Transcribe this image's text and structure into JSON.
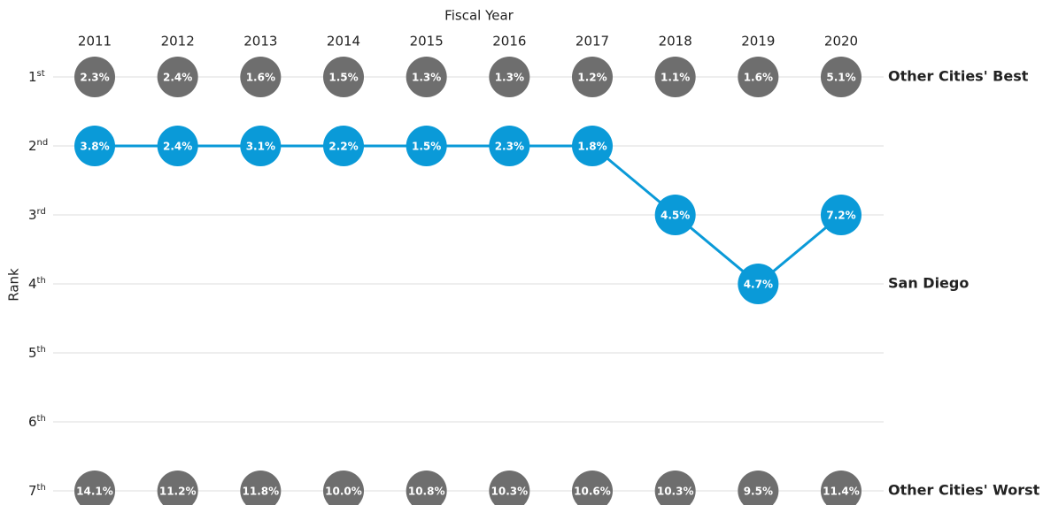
{
  "chart_data": {
    "type": "line",
    "title": "Fiscal Year",
    "y_label": "Rank",
    "categories": [
      "2011",
      "2012",
      "2013",
      "2014",
      "2015",
      "2016",
      "2017",
      "2018",
      "2019",
      "2020"
    ],
    "ylim": [
      1,
      7
    ],
    "yticks": [
      {
        "value": 1,
        "label": "1st"
      },
      {
        "value": 2,
        "label": "2nd"
      },
      {
        "value": 3,
        "label": "3rd"
      },
      {
        "value": 4,
        "label": "4th"
      },
      {
        "value": 5,
        "label": "5th"
      },
      {
        "value": 6,
        "label": "6th"
      },
      {
        "value": 7,
        "label": "7th"
      }
    ],
    "grid": true,
    "series": [
      {
        "name": "Other Cities' Best",
        "color": "#6e6e6e",
        "connect": false,
        "values": [
          1,
          1,
          1,
          1,
          1,
          1,
          1,
          1,
          1,
          1
        ],
        "labels": [
          "2.3%",
          "2.4%",
          "1.6%",
          "1.5%",
          "1.3%",
          "1.3%",
          "1.2%",
          "1.1%",
          "1.6%",
          "5.1%"
        ]
      },
      {
        "name": "San Diego",
        "color": "#0a9ad8",
        "connect": true,
        "values": [
          2,
          2,
          2,
          2,
          2,
          2,
          2,
          3,
          4,
          3
        ],
        "labels": [
          "3.8%",
          "2.4%",
          "3.1%",
          "2.2%",
          "1.5%",
          "2.3%",
          "1.8%",
          "4.5%",
          "4.7%",
          "7.2%"
        ]
      },
      {
        "name": "Other Cities' Worst",
        "color": "#6e6e6e",
        "connect": false,
        "values": [
          7,
          7,
          7,
          7,
          7,
          7,
          7,
          7,
          7,
          7
        ],
        "labels": [
          "14.1%",
          "11.2%",
          "11.8%",
          "10.0%",
          "10.8%",
          "10.3%",
          "10.6%",
          "10.3%",
          "9.5%",
          "11.4%"
        ]
      }
    ]
  }
}
